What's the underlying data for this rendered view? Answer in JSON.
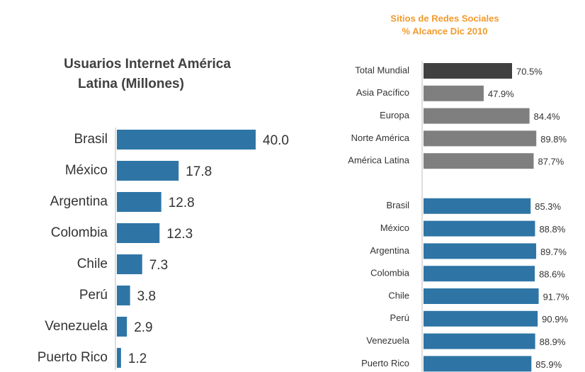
{
  "chart_data": [
    {
      "type": "hbar",
      "title": "Usuarios Internet América Latina  (Millones)",
      "categories": [
        "Brasil",
        "México",
        "Argentina",
        "Colombia",
        "Chile",
        "Perú",
        "Venezuela",
        "Puerto Rico"
      ],
      "values": [
        40.0,
        17.8,
        12.8,
        12.3,
        7.3,
        3.8,
        2.9,
        1.2
      ],
      "value_labels": [
        "40.0",
        "17.8",
        "12.8",
        "12.3",
        "7.3",
        "3.8",
        "2.9",
        "1.2"
      ],
      "color": "#2e75a6"
    },
    {
      "type": "hbar",
      "title": "Sitios de Redes Sociales",
      "subtitle": "% Alcance Dic 2010",
      "categories": [
        "Total Mundial",
        "Asia Pacífico",
        "Europa",
        "Norte América",
        "América Latina",
        null,
        "Brasil",
        "México",
        "Argentina",
        "Colombia",
        "Chile",
        "Perú",
        "Venezuela",
        "Puerto Rico"
      ],
      "values": [
        70.5,
        47.9,
        84.4,
        89.8,
        87.7,
        null,
        85.3,
        88.8,
        89.7,
        88.6,
        91.7,
        90.9,
        88.9,
        85.9
      ],
      "value_labels": [
        "70.5%",
        "47.9%",
        "84.4%",
        "89.8%",
        "87.7%",
        null,
        "85.3%",
        "88.8%",
        "89.7%",
        "88.6%",
        "91.7%",
        "90.9%",
        "88.9%",
        "85.9%"
      ],
      "colors": [
        "#404040",
        "#7f7f7f",
        "#7f7f7f",
        "#7f7f7f",
        "#7f7f7f",
        null,
        "#2e75a6",
        "#2e75a6",
        "#2e75a6",
        "#2e75a6",
        "#2e75a6",
        "#2e75a6",
        "#2e75a6",
        "#2e75a6"
      ]
    }
  ]
}
